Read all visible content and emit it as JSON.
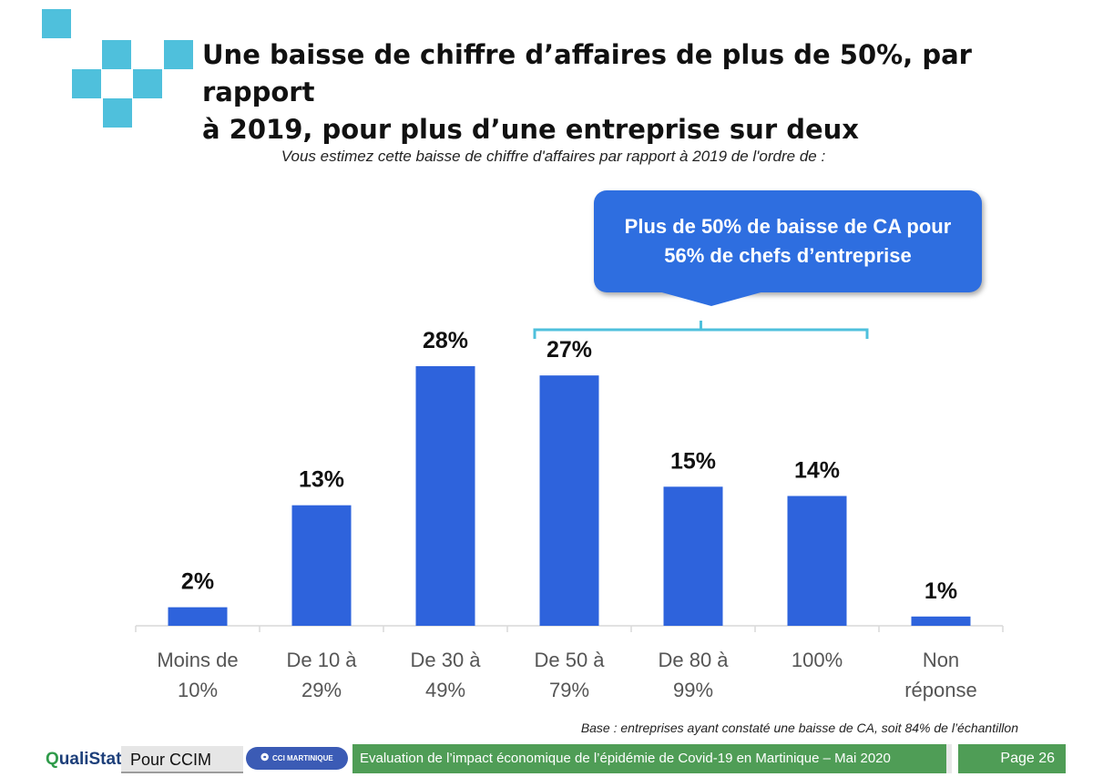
{
  "header": {
    "title_line1": "Une baisse de chiffre d’affaires de plus de 50%, par rapport",
    "title_line2": "à 2019, pour plus d’une entreprise sur deux",
    "question": "Vous estimez cette baisse de chiffre d'affaires par rapport à 2019 de l'ordre de :"
  },
  "callout": {
    "line1": "Plus de 50% de baisse de CA pour",
    "line2": "56% de chefs d’entreprise"
  },
  "chart_data": {
    "type": "bar",
    "title": "",
    "xlabel": "",
    "ylabel": "",
    "ylim": [
      0,
      28
    ],
    "grid": false,
    "categories": [
      [
        "Moins de",
        "10%"
      ],
      [
        "De 10 à",
        "29%"
      ],
      [
        "De 30 à",
        "49%"
      ],
      [
        "De 50 à",
        "79%"
      ],
      [
        "De 80 à",
        "99%"
      ],
      [
        "100%"
      ],
      [
        "Non",
        "réponse"
      ]
    ],
    "values": [
      2,
      13,
      28,
      27,
      15,
      14,
      1
    ],
    "value_labels": [
      "2%",
      "13%",
      "28%",
      "27%",
      "15%",
      "14%",
      "1%"
    ],
    "annotation": {
      "text": "Plus de 50% de baisse de CA pour 56% de chefs d’entreprise",
      "spans_categories": [
        "De 50 à 79%",
        "De 80 à 99%",
        "100%"
      ]
    }
  },
  "colors": {
    "bar": "#2e63dc",
    "accent": "#4fc0dc",
    "footer_green": "#4f9d56",
    "callout": "#2e6ee0"
  },
  "base_note": "Base : entreprises ayant constaté une baisse de CA, soit 84% de l’échantillon",
  "footer": {
    "logo_q": "Q",
    "logo_rest": "ualiStat",
    "client": "Pour CCIM",
    "partner_logo": "CCI MARTINIQUE",
    "study": "Evaluation  de l’impact économique  de l’épidémie de Covid-19 en Martinique  – Mai 2020",
    "page": "Page 26"
  }
}
